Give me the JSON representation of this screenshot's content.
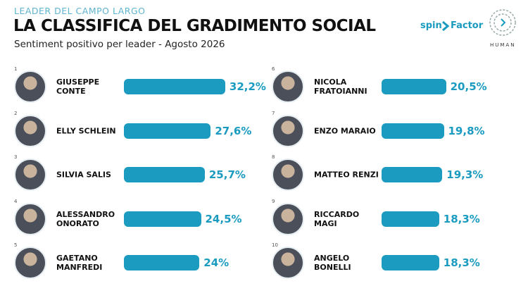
{
  "chart_data": {
    "type": "bar",
    "kicker": "LEADER DEL CAMPO LARGO",
    "title": "LA CLASSIFICA DEL GRADIMENTO SOCIAL",
    "subtitle": "Sentiment positivo per leader - Agosto 2026",
    "logos": [
      "spin",
      "Factor",
      "HUMAN"
    ],
    "ranks": [
      1,
      2,
      3,
      4,
      5,
      6,
      7,
      8,
      9,
      10
    ],
    "categories": [
      "GIUSEPPE\nCONTE",
      "ELLY SCHLEIN",
      "SILVIA SALIS",
      "ALESSANDRO\nONORATO",
      "GAETANO\nMANFREDI",
      "NICOLA\nFRATOIANNI",
      "ENZO MARAIO",
      "MATTEO RENZI",
      "RICCARDO\nMAGI",
      "ANGELO\nBONELLI"
    ],
    "values": [
      32.2,
      27.6,
      25.7,
      24.5,
      24,
      20.5,
      19.8,
      19.3,
      18.3,
      18.3
    ],
    "value_labels": [
      "32,2%",
      "27,6%",
      "25,7%",
      "24,5%",
      "24%",
      "20,5%",
      "19,8%",
      "19,3%",
      "18,3%",
      "18,3%"
    ],
    "color": "#1a9bbf"
  }
}
